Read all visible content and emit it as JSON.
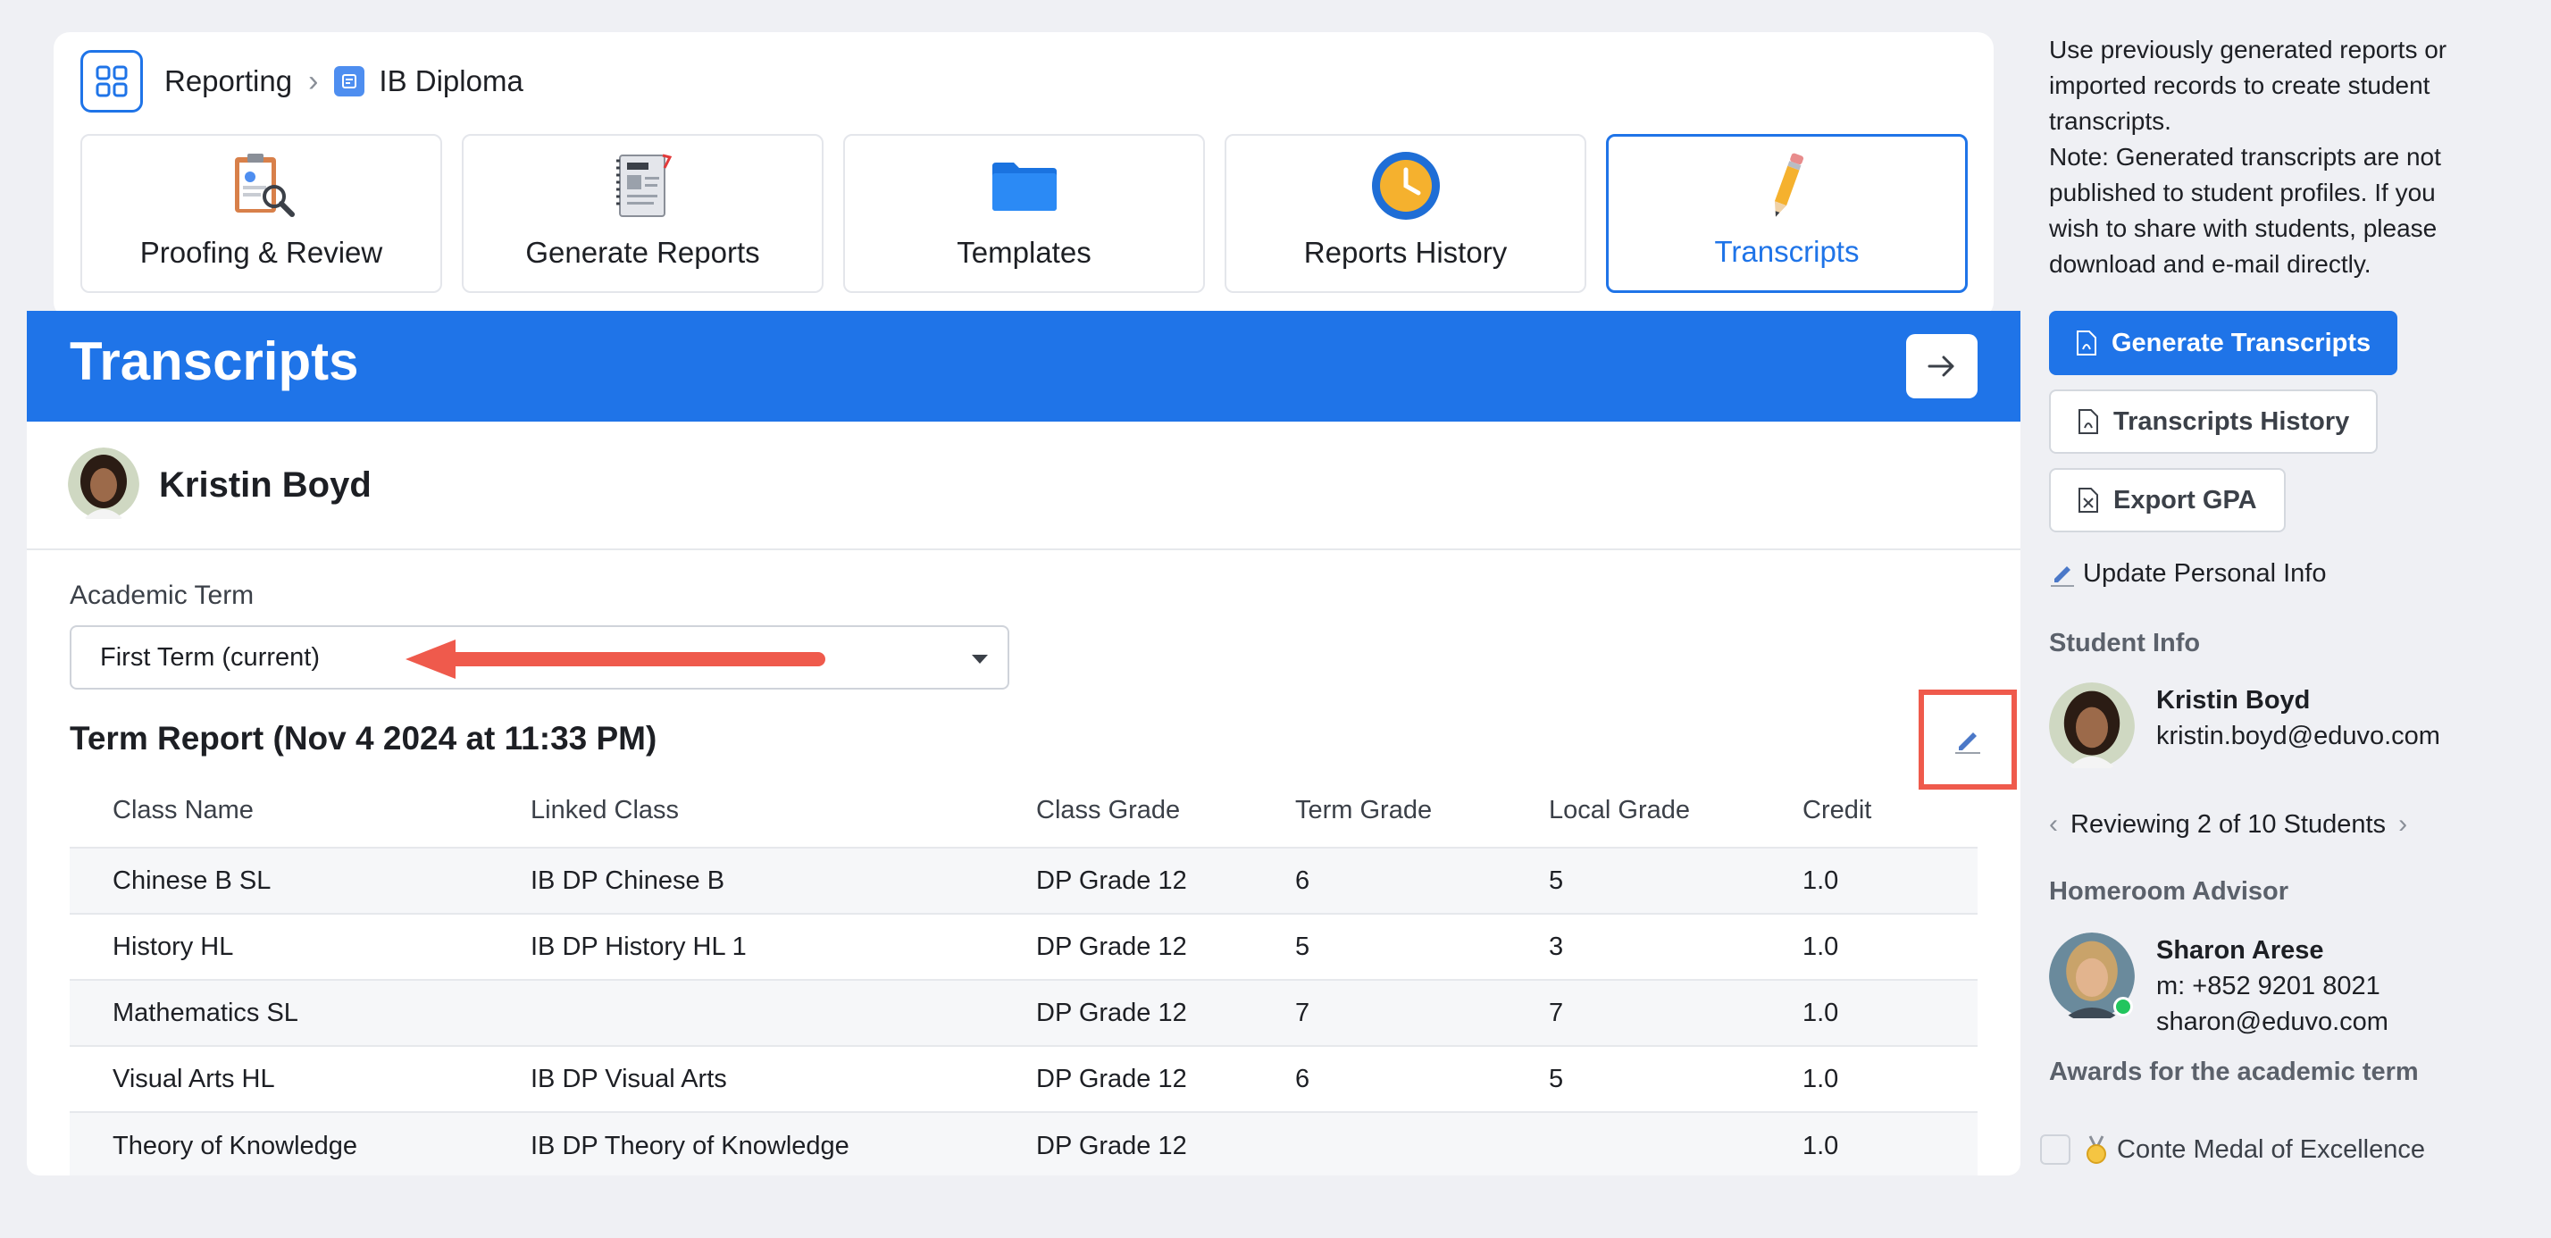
{
  "breadcrumb": {
    "root": "Reporting",
    "separator": "›",
    "current": "IB Diploma"
  },
  "nav_tiles": [
    {
      "label": "Proofing & Review",
      "icon": "proofing-icon"
    },
    {
      "label": "Generate Reports",
      "icon": "report-cards-icon"
    },
    {
      "label": "Templates",
      "icon": "folder-icon"
    },
    {
      "label": "Reports History",
      "icon": "clock-icon"
    },
    {
      "label": "Transcripts",
      "icon": "pencil-icon",
      "active": true
    }
  ],
  "main": {
    "title": "Transcripts",
    "student_name": "Kristin Boyd",
    "term_label": "Academic Term",
    "term_value": "First Term (current)",
    "report_title": "Term Report (Nov 4 2024 at 11:33 PM)"
  },
  "table": {
    "headers": [
      "Class Name",
      "Linked Class",
      "Class Grade",
      "Term Grade",
      "Local Grade",
      "Credit"
    ],
    "rows": [
      [
        "Chinese B SL",
        "IB DP Chinese B",
        "DP Grade 12",
        "6",
        "5",
        "1.0"
      ],
      [
        "History HL",
        "IB DP History HL 1",
        "DP Grade 12",
        "5",
        "3",
        "1.0"
      ],
      [
        "Mathematics SL",
        "",
        "DP Grade 12",
        "7",
        "7",
        "1.0"
      ],
      [
        "Visual Arts HL",
        "IB DP Visual Arts",
        "DP Grade 12",
        "6",
        "5",
        "1.0"
      ],
      [
        "Theory of Knowledge",
        "IB DP Theory of Knowledge",
        "DP Grade 12",
        "",
        "",
        "1.0"
      ]
    ]
  },
  "sidebar": {
    "desc_lines": [
      "Use previously generated reports or",
      "imported records to create student",
      "transcripts.",
      "Note: Generated transcripts are not",
      "published to student profiles. If you",
      "wish to share with students, please",
      "download and e-mail directly."
    ],
    "generate_btn": "Generate Transcripts",
    "history_btn": "Transcripts History",
    "export_btn": "Export GPA",
    "update_link": "Update Personal Info",
    "student_info_heading": "Student Info",
    "student": {
      "name": "Kristin Boyd",
      "email": "kristin.boyd@eduvo.com"
    },
    "review": "Reviewing 2 of 10 Students",
    "advisor_heading": "Homeroom Advisor",
    "advisor": {
      "name": "Sharon Arese",
      "mobile": "m: +852 9201 8021",
      "email": "sharon@eduvo.com"
    },
    "awards_heading": "Awards for the academic term",
    "award": "Conte Medal of Excellence"
  },
  "colors": {
    "accent": "#1f74e8",
    "highlight": "#ef5a4c",
    "background": "#eff0f4"
  }
}
